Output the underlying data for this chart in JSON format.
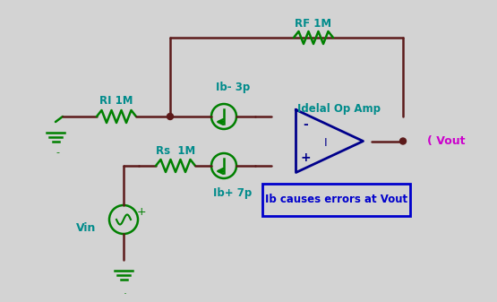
{
  "bg_color": "#d3d3d3",
  "wire_color": "#5c1a1a",
  "component_color": "#008000",
  "opamp_color": "#00008b",
  "text_color_cyan": "#008b8b",
  "text_color_magenta": "#cc00cc",
  "text_color_blue": "#0000cc",
  "box_edge_color": "#0000cc",
  "resistor_label_RI": "RI 1M",
  "resistor_label_Rs": "Rs  1M",
  "resistor_label_RF": "RF 1M",
  "current_label_top": "Ib- 3p",
  "current_label_bot": "Ib+ 7p",
  "opamp_label": "Idelal Op Amp",
  "vout_label": "Vout",
  "vin_label": "Vin",
  "box_label": "Ib causes errors at Vout"
}
